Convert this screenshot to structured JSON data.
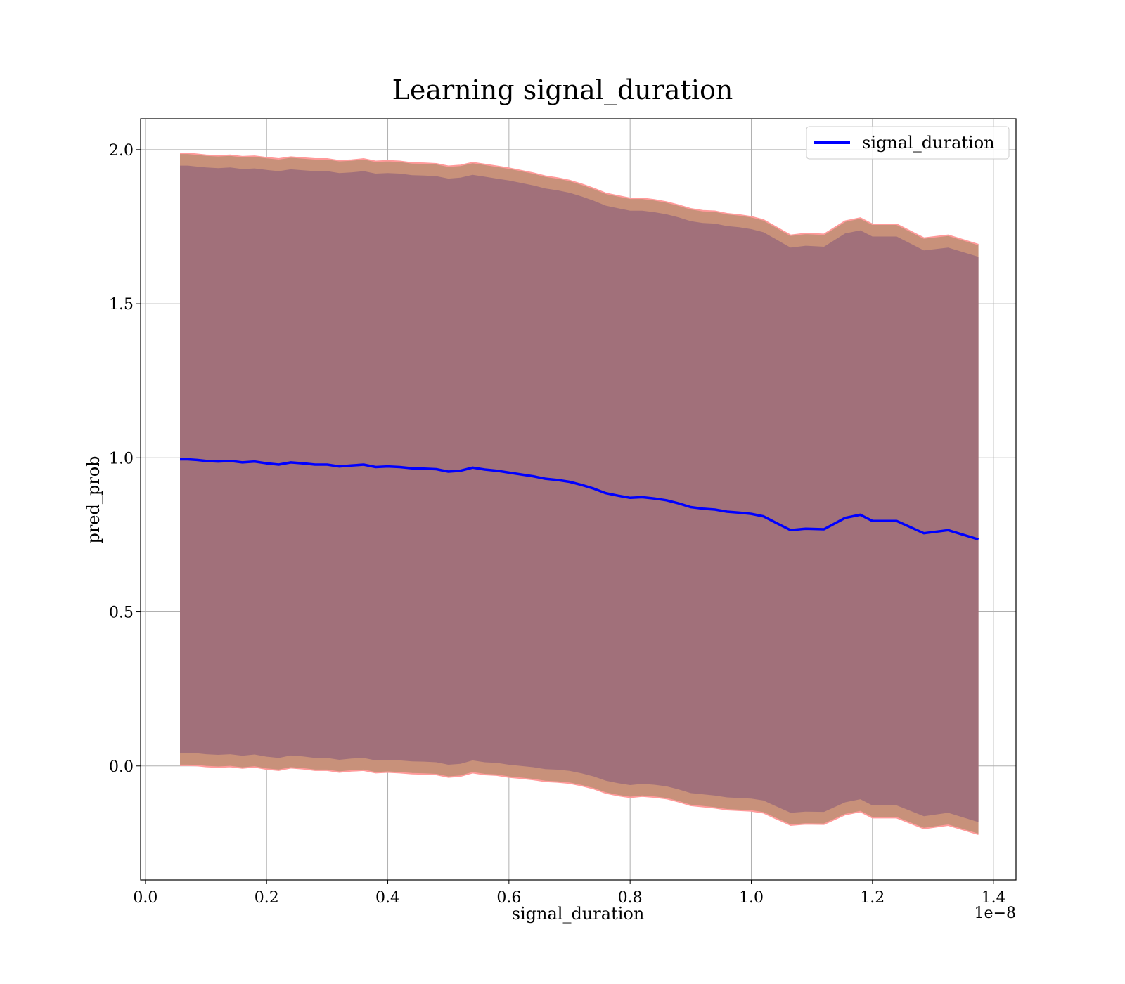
{
  "chart_data": {
    "type": "line",
    "title": "Learning signal_duration",
    "xlabel": "signal_duration",
    "ylabel": "pred_prob",
    "x_offset_label": "1e−8",
    "xlim": [
      -0.008,
      1.437
    ],
    "ylim": [
      -0.37,
      2.1
    ],
    "xticks": [
      0.0,
      0.2,
      0.4,
      0.6,
      0.8,
      1.0,
      1.2,
      1.4
    ],
    "xtick_labels": [
      "0.0",
      "0.2",
      "0.4",
      "0.6",
      "0.8",
      "1.0",
      "1.2",
      "1.4"
    ],
    "yticks": [
      0.0,
      0.5,
      1.0,
      1.5,
      2.0
    ],
    "ytick_labels": [
      "0.0",
      "0.5",
      "1.0",
      "1.5",
      "2.0"
    ],
    "grid": true,
    "legend_position": "top-right",
    "colors": {
      "line": "#0000ff",
      "outer_band": "#c8917a",
      "outer_band_edge": "#ff9a9a",
      "inner_band": "#a1707a"
    },
    "series": [
      {
        "name": "signal_duration",
        "x": [
          0.057,
          0.07,
          0.085,
          0.1,
          0.12,
          0.14,
          0.16,
          0.18,
          0.2,
          0.22,
          0.24,
          0.26,
          0.28,
          0.3,
          0.32,
          0.34,
          0.36,
          0.38,
          0.4,
          0.42,
          0.44,
          0.46,
          0.48,
          0.5,
          0.52,
          0.54,
          0.56,
          0.58,
          0.6,
          0.62,
          0.64,
          0.66,
          0.68,
          0.7,
          0.72,
          0.74,
          0.76,
          0.78,
          0.8,
          0.82,
          0.84,
          0.86,
          0.88,
          0.9,
          0.92,
          0.94,
          0.96,
          0.98,
          1.0,
          1.02,
          1.04,
          1.055,
          1.065,
          1.09,
          1.12,
          1.155,
          1.18,
          1.2,
          1.24,
          1.285,
          1.325,
          1.375
        ],
        "values": [
          0.995,
          0.995,
          0.993,
          0.99,
          0.988,
          0.99,
          0.985,
          0.988,
          0.982,
          0.978,
          0.985,
          0.982,
          0.978,
          0.978,
          0.972,
          0.975,
          0.978,
          0.97,
          0.972,
          0.97,
          0.966,
          0.965,
          0.963,
          0.955,
          0.958,
          0.968,
          0.962,
          0.958,
          0.952,
          0.946,
          0.94,
          0.932,
          0.928,
          0.922,
          0.912,
          0.9,
          0.885,
          0.877,
          0.87,
          0.872,
          0.868,
          0.862,
          0.852,
          0.84,
          0.835,
          0.832,
          0.825,
          0.822,
          0.818,
          0.81,
          0.79,
          0.775,
          0.765,
          0.77,
          0.768,
          0.805,
          0.815,
          0.795,
          0.795,
          0.755,
          0.765,
          0.735
        ]
      }
    ],
    "band_outer": {
      "upper": [
        1.988,
        1.988,
        1.985,
        1.982,
        1.98,
        1.982,
        1.977,
        1.979,
        1.974,
        1.97,
        1.976,
        1.973,
        1.97,
        1.97,
        1.964,
        1.966,
        1.97,
        1.962,
        1.964,
        1.962,
        1.957,
        1.956,
        1.954,
        1.946,
        1.949,
        1.958,
        1.952,
        1.946,
        1.94,
        1.932,
        1.924,
        1.914,
        1.908,
        1.9,
        1.888,
        1.874,
        1.858,
        1.85,
        1.842,
        1.842,
        1.837,
        1.83,
        1.82,
        1.808,
        1.802,
        1.8,
        1.792,
        1.788,
        1.782,
        1.772,
        1.75,
        1.733,
        1.722,
        1.728,
        1.725,
        1.768,
        1.778,
        1.758,
        1.758,
        1.713,
        1.722,
        1.692
      ],
      "lower": [
        0.002,
        0.002,
        0.001,
        -0.002,
        -0.004,
        -0.002,
        -0.007,
        -0.003,
        -0.01,
        -0.014,
        -0.006,
        -0.009,
        -0.014,
        -0.014,
        -0.02,
        -0.016,
        -0.014,
        -0.022,
        -0.02,
        -0.022,
        -0.025,
        -0.026,
        -0.028,
        -0.036,
        -0.033,
        -0.022,
        -0.028,
        -0.03,
        -0.036,
        -0.04,
        -0.044,
        -0.05,
        -0.052,
        -0.056,
        -0.064,
        -0.074,
        -0.088,
        -0.096,
        -0.102,
        -0.098,
        -0.101,
        -0.106,
        -0.116,
        -0.128,
        -0.132,
        -0.136,
        -0.142,
        -0.144,
        -0.146,
        -0.152,
        -0.17,
        -0.183,
        -0.192,
        -0.188,
        -0.189,
        -0.158,
        -0.148,
        -0.168,
        -0.168,
        -0.203,
        -0.192,
        -0.222
      ]
    },
    "band_inner": {
      "upper": [
        1.948,
        1.948,
        1.945,
        1.942,
        1.94,
        1.942,
        1.937,
        1.939,
        1.934,
        1.93,
        1.936,
        1.933,
        1.93,
        1.93,
        1.924,
        1.926,
        1.93,
        1.922,
        1.924,
        1.922,
        1.917,
        1.916,
        1.914,
        1.906,
        1.909,
        1.918,
        1.912,
        1.906,
        1.9,
        1.892,
        1.884,
        1.874,
        1.868,
        1.86,
        1.848,
        1.834,
        1.818,
        1.81,
        1.802,
        1.802,
        1.797,
        1.79,
        1.78,
        1.768,
        1.762,
        1.76,
        1.752,
        1.748,
        1.742,
        1.732,
        1.71,
        1.693,
        1.682,
        1.688,
        1.685,
        1.728,
        1.738,
        1.718,
        1.718,
        1.673,
        1.682,
        1.652
      ],
      "lower": [
        0.042,
        0.042,
        0.041,
        0.038,
        0.036,
        0.038,
        0.033,
        0.037,
        0.03,
        0.026,
        0.034,
        0.031,
        0.026,
        0.026,
        0.02,
        0.024,
        0.026,
        0.018,
        0.02,
        0.018,
        0.015,
        0.014,
        0.012,
        0.004,
        0.007,
        0.018,
        0.012,
        0.01,
        0.004,
        0.0,
        -0.004,
        -0.01,
        -0.012,
        -0.016,
        -0.024,
        -0.034,
        -0.048,
        -0.056,
        -0.062,
        -0.058,
        -0.061,
        -0.066,
        -0.076,
        -0.088,
        -0.092,
        -0.096,
        -0.102,
        -0.104,
        -0.106,
        -0.112,
        -0.13,
        -0.143,
        -0.152,
        -0.148,
        -0.149,
        -0.118,
        -0.108,
        -0.128,
        -0.128,
        -0.163,
        -0.152,
        -0.182
      ]
    }
  }
}
